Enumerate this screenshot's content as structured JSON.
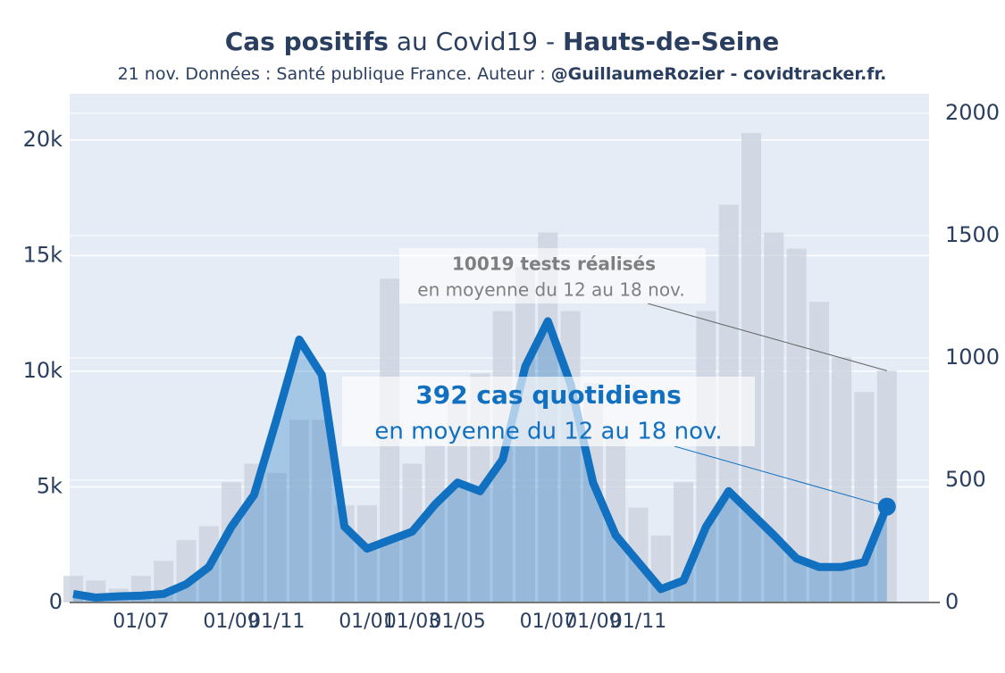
{
  "chart_data": {
    "type": "bar-line",
    "title": {
      "part1": "Cas positifs",
      "part2": " au Covid19 - ",
      "part3": "Hauts-de-Seine"
    },
    "subtitle": {
      "part1": "21 nov. Données : Santé publique France. Auteur : ",
      "part2": "@GuillaumeRozier - covidtracker.fr."
    },
    "categories": [
      null,
      null,
      null,
      "01/07",
      null,
      null,
      null,
      "01/09",
      null,
      "01/11",
      null,
      null,
      null,
      "01/01",
      null,
      "01/03",
      null,
      "01/05",
      null,
      null,
      null,
      "01/07",
      null,
      "01/09",
      null,
      "01/11",
      null,
      null,
      null,
      null,
      null,
      null,
      null,
      null,
      null,
      null,
      null
    ],
    "series": [
      {
        "color": "#c9d0dc",
        "values": [
          1150,
          950,
          600,
          1150,
          1800,
          2700,
          3300,
          5200,
          6000,
          5600,
          7900,
          7900,
          4200,
          4200,
          14000,
          6000,
          6800,
          8700,
          9900,
          12600,
          14500,
          16000,
          12600,
          9500,
          7500,
          4100,
          2900,
          5200,
          12600,
          17200,
          20300,
          16000,
          15300,
          13000,
          10600,
          9100,
          10019
        ]
      },
      {
        "color": "#1170c0",
        "axis": "y2",
        "values": [
          35,
          20,
          25,
          28,
          35,
          75,
          145,
          310,
          440,
          750,
          1075,
          930,
          310,
          220,
          255,
          290,
          400,
          490,
          455,
          585,
          965,
          1150,
          895,
          490,
          275,
          165,
          55,
          90,
          310,
          455,
          365,
          275,
          180,
          145,
          145,
          165,
          392
        ]
      }
    ],
    "ylim": [
      0,
      22000
    ],
    "yticks": [
      0,
      {
        "value": 5000,
        "label": "5k"
      },
      {
        "value": 10000,
        "label": "10k"
      },
      {
        "value": 15000,
        "label": "15k"
      },
      {
        "value": 20000,
        "label": "20k"
      }
    ],
    "y2lim": [
      0,
      2080
    ],
    "y2ticks": [
      0,
      500,
      1000,
      1500,
      2000
    ],
    "grid": true,
    "annotations": [
      {
        "bold": "10019 tests réalisés",
        "text": "en moyenne du 12 au 18 nov."
      },
      {
        "bold": "392 cas quotidiens",
        "text": "en moyenne du 12 au 18 nov."
      }
    ]
  }
}
